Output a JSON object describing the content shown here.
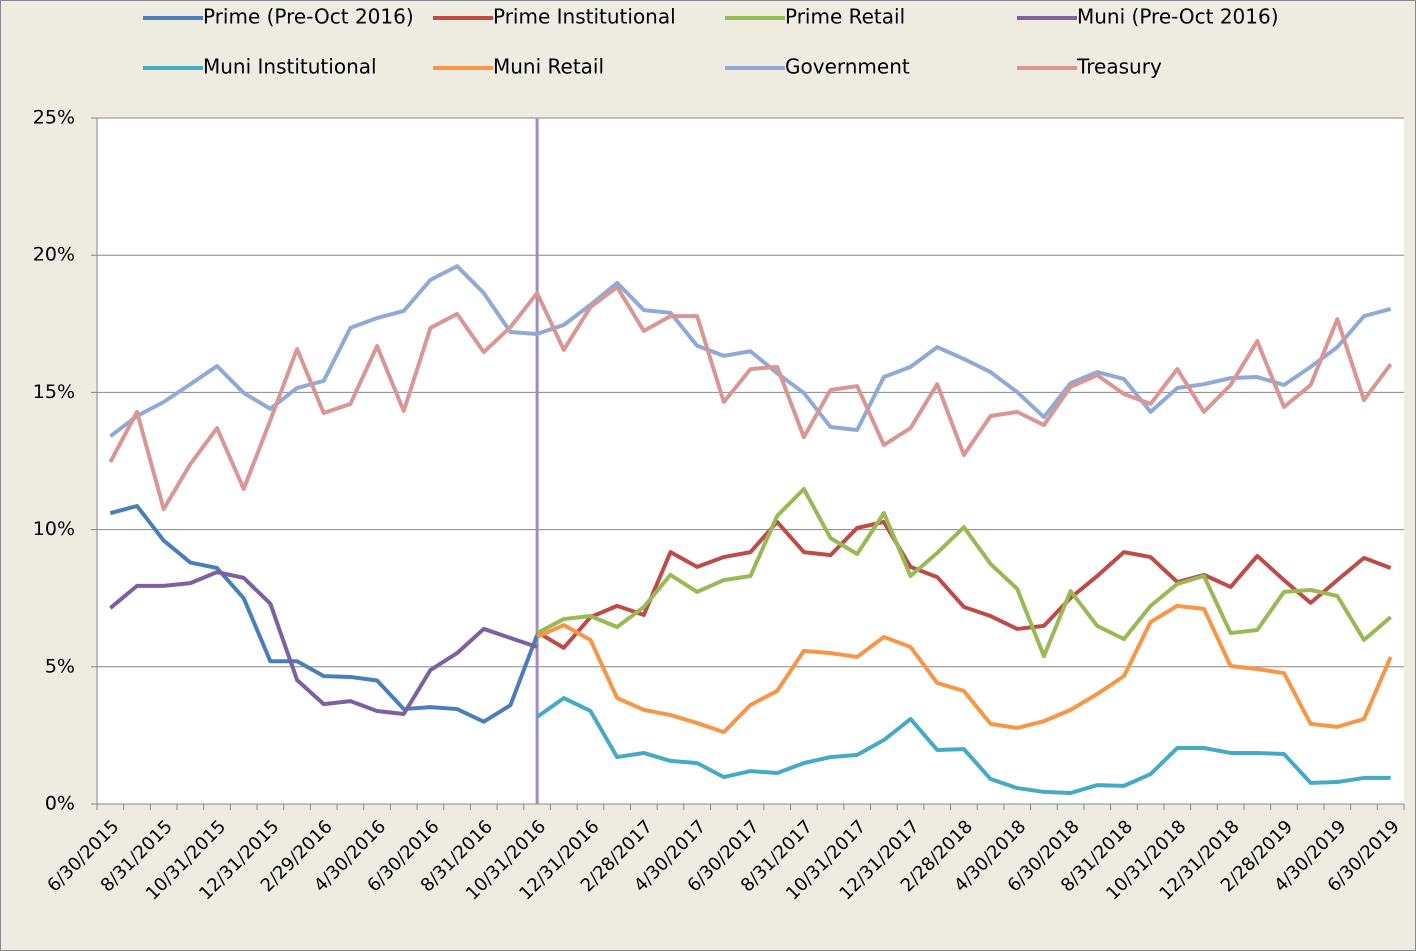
{
  "chart_data": {
    "type": "line",
    "categories": [
      "6/30/2015",
      null,
      "8/31/2015",
      null,
      "10/31/2015",
      null,
      "12/31/2015",
      null,
      "2/29/2016",
      null,
      "4/30/2016",
      null,
      "6/30/2016",
      null,
      "8/31/2016",
      null,
      "10/31/2016",
      null,
      "12/31/2016",
      null,
      "2/28/2017",
      null,
      "4/30/2017",
      null,
      "6/30/2017",
      null,
      "8/31/2017",
      null,
      "10/31/2017",
      null,
      "12/31/2017",
      null,
      "2/28/2018",
      null,
      "4/30/2018",
      null,
      "6/30/2018",
      null,
      "8/31/2018",
      null,
      "10/31/2018",
      null,
      "12/31/2018",
      null,
      "2/28/2019",
      null,
      "4/30/2019",
      null,
      "6/30/2019"
    ],
    "ylim": [
      0,
      25
    ],
    "yticks": [
      {
        "value": 0,
        "label": "0%"
      },
      {
        "value": 5,
        "label": "5%"
      },
      {
        "value": 10,
        "label": "10%"
      },
      {
        "value": 15,
        "label": "15%"
      },
      {
        "value": 20,
        "label": "20%"
      },
      {
        "value": 25,
        "label": "25%"
      }
    ],
    "grid": true,
    "series": [
      {
        "name": "Prime (Pre-Oct 2016)",
        "color": "#4a7ebb",
        "values": [
          10.6,
          10.86,
          9.6,
          8.8,
          8.6,
          7.5,
          5.2,
          5.2,
          4.66,
          4.63,
          4.5,
          3.46,
          3.53,
          3.46,
          3.0,
          3.6,
          6.16,
          null,
          null,
          null,
          null,
          null,
          null,
          null,
          null,
          null,
          null,
          null,
          null,
          null,
          null,
          null,
          null,
          null,
          null,
          null,
          null,
          null,
          null,
          null,
          null,
          null,
          null,
          null,
          null,
          null,
          null,
          null,
          null
        ]
      },
      {
        "name": "Prime Institutional",
        "color": "#be4b48",
        "values": [
          null,
          null,
          null,
          null,
          null,
          null,
          null,
          null,
          null,
          null,
          null,
          null,
          null,
          null,
          null,
          null,
          6.27,
          5.69,
          6.81,
          7.22,
          6.89,
          9.18,
          8.64,
          9.0,
          9.18,
          10.28,
          9.18,
          9.07,
          10.06,
          10.28,
          8.64,
          8.27,
          7.18,
          6.85,
          6.38,
          6.49,
          7.51,
          8.31,
          9.18,
          9.0,
          8.09,
          8.35,
          7.91,
          9.04,
          8.16,
          7.33,
          8.16,
          8.97,
          8.6
        ]
      },
      {
        "name": "Prime Retail",
        "color": "#98b954",
        "values": [
          null,
          null,
          null,
          null,
          null,
          null,
          null,
          null,
          null,
          null,
          null,
          null,
          null,
          null,
          null,
          null,
          6.23,
          6.74,
          6.85,
          6.45,
          7.18,
          8.35,
          7.73,
          8.16,
          8.31,
          10.5,
          11.48,
          9.69,
          9.11,
          10.6,
          8.31,
          9.15,
          10.09,
          8.75,
          7.84,
          5.39,
          7.76,
          6.49,
          6.01,
          7.22,
          8.02,
          8.31,
          6.23,
          6.34,
          7.73,
          7.8,
          7.58,
          5.98,
          6.81
        ]
      },
      {
        "name": "Muni (Pre-Oct 2016)",
        "color": "#7d60a0",
        "values": [
          7.14,
          7.95,
          7.95,
          8.05,
          8.45,
          8.24,
          7.3,
          4.52,
          3.64,
          3.75,
          3.39,
          3.28,
          4.88,
          5.5,
          6.38,
          6.05,
          5.72,
          null,
          null,
          null,
          null,
          null,
          null,
          null,
          null,
          null,
          null,
          null,
          null,
          null,
          null,
          null,
          null,
          null,
          null,
          null,
          null,
          null,
          null,
          null,
          null,
          null,
          null,
          null,
          null,
          null,
          null,
          null,
          null
        ]
      },
      {
        "name": "Muni Institutional",
        "color": "#46aac5",
        "values": [
          null,
          null,
          null,
          null,
          null,
          null,
          null,
          null,
          null,
          null,
          null,
          null,
          null,
          null,
          null,
          null,
          3.17,
          3.86,
          3.39,
          1.71,
          1.86,
          1.57,
          1.49,
          0.98,
          1.2,
          1.13,
          1.49,
          1.71,
          1.79,
          2.33,
          3.1,
          1.97,
          2.0,
          0.91,
          0.58,
          0.44,
          0.4,
          0.69,
          0.66,
          1.09,
          2.04,
          2.04,
          1.86,
          1.86,
          1.82,
          0.77,
          0.8,
          0.95,
          0.95
        ]
      },
      {
        "name": "Muni Retail",
        "color": "#f79646",
        "values": [
          null,
          null,
          null,
          null,
          null,
          null,
          null,
          null,
          null,
          null,
          null,
          null,
          null,
          null,
          null,
          null,
          6.09,
          6.52,
          5.98,
          3.86,
          3.43,
          3.24,
          2.95,
          2.62,
          3.61,
          4.12,
          5.58,
          5.5,
          5.36,
          6.09,
          5.72,
          4.41,
          4.12,
          2.92,
          2.77,
          3.02,
          3.43,
          4.01,
          4.66,
          6.63,
          7.22,
          7.11,
          5.03,
          4.92,
          4.77,
          2.92,
          2.81,
          3.1,
          5.36
        ]
      },
      {
        "name": "Government",
        "color": "#8faad6",
        "values": [
          13.4,
          14.14,
          14.65,
          15.3,
          15.96,
          14.98,
          14.4,
          15.16,
          15.42,
          17.35,
          17.71,
          17.97,
          19.1,
          19.6,
          18.62,
          17.2,
          17.13,
          17.46,
          18.19,
          18.99,
          18.0,
          17.9,
          16.7,
          16.33,
          16.5,
          15.7,
          14.98,
          13.74,
          13.63,
          15.56,
          15.93,
          16.65,
          16.22,
          15.74,
          15.01,
          14.1,
          15.34,
          15.74,
          15.49,
          14.29,
          15.16,
          15.3,
          15.52,
          15.56,
          15.27,
          15.93,
          16.65,
          17.78,
          18.04
        ]
      },
      {
        "name": "Treasury",
        "color": "#d99694",
        "values": [
          12.46,
          14.29,
          10.75,
          12.39,
          13.7,
          11.48,
          13.99,
          16.58,
          14.25,
          14.58,
          16.69,
          14.32,
          17.35,
          17.86,
          16.47,
          17.38,
          18.62,
          16.55,
          18.11,
          18.84,
          17.24,
          17.78,
          17.78,
          14.65,
          15.85,
          15.93,
          13.37,
          15.09,
          15.23,
          13.08,
          13.7,
          15.3,
          12.72,
          14.14,
          14.29,
          13.81,
          15.2,
          15.63,
          14.94,
          14.58,
          15.85,
          14.29,
          15.27,
          16.87,
          14.47,
          15.27,
          17.67,
          14.72,
          16.03
        ]
      }
    ]
  }
}
